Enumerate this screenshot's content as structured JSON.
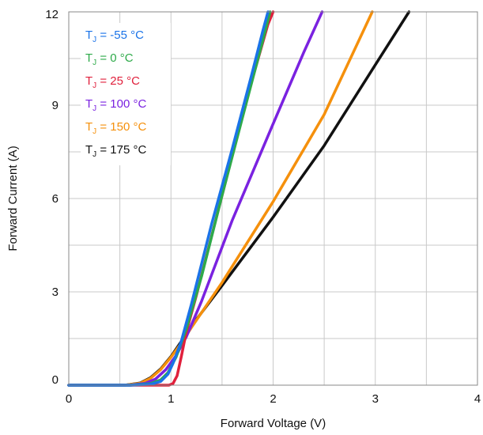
{
  "chart_data": {
    "type": "line",
    "xlabel": "Forward Voltage (V)",
    "ylabel": "Forward Current (A)",
    "xlim": [
      0,
      4
    ],
    "ylim": [
      0,
      12
    ],
    "xticks": [
      0,
      1,
      2,
      3,
      4
    ],
    "yticks": [
      0,
      3,
      6,
      9,
      12
    ],
    "xtick_labels": [
      "0",
      "1",
      "2",
      "3",
      "4"
    ],
    "ytick_labels": [
      "0",
      "3",
      "6",
      "9",
      "12"
    ],
    "grid": true,
    "grid_minor_x": [
      0.5,
      1.5,
      2.5,
      3.5
    ],
    "grid_minor_y": [
      1.5,
      4.5,
      7.5,
      10.5
    ],
    "legend_placement": "top-left",
    "series": [
      {
        "name": "TJ = -55 °C",
        "label_main": "T",
        "label_sub": "J",
        "label_rest": " = -55 °C",
        "color": "#1a73e8",
        "points": [
          [
            0,
            0
          ],
          [
            0.6,
            0
          ],
          [
            0.8,
            0.03
          ],
          [
            0.9,
            0.12
          ],
          [
            0.97,
            0.35
          ],
          [
            1.02,
            0.7
          ],
          [
            1.1,
            1.4
          ],
          [
            1.2,
            2.6
          ],
          [
            1.4,
            5.2
          ],
          [
            1.6,
            7.6
          ],
          [
            1.8,
            10.1
          ],
          [
            1.9,
            11.4
          ],
          [
            1.95,
            12
          ]
        ]
      },
      {
        "name": "TJ = 0 °C",
        "label_main": "T",
        "label_sub": "J",
        "label_rest": " = 0 °C",
        "color": "#2eaa4a",
        "points": [
          [
            0,
            0
          ],
          [
            0.6,
            0
          ],
          [
            0.8,
            0.05
          ],
          [
            0.9,
            0.17
          ],
          [
            0.97,
            0.4
          ],
          [
            1.05,
            0.9
          ],
          [
            1.15,
            1.8
          ],
          [
            1.3,
            3.5
          ],
          [
            1.5,
            6.1
          ],
          [
            1.7,
            8.6
          ],
          [
            1.9,
            11.1
          ],
          [
            1.97,
            12
          ]
        ]
      },
      {
        "name": "TJ = 25 °C",
        "label_main": "T",
        "label_sub": "J",
        "label_rest": " = 25 °C",
        "color": "#e0203c",
        "points": [
          [
            0,
            0
          ],
          [
            0.98,
            0
          ],
          [
            1.02,
            0.05
          ],
          [
            1.06,
            0.3
          ],
          [
            1.1,
            0.9
          ],
          [
            1.15,
            1.7
          ],
          [
            1.25,
            2.9
          ],
          [
            1.5,
            6.1
          ],
          [
            1.75,
            9.3
          ],
          [
            1.95,
            11.6
          ],
          [
            2.0,
            12
          ]
        ]
      },
      {
        "name": "TJ = 100 °C",
        "label_main": "T",
        "label_sub": "J",
        "label_rest": " = 100 °C",
        "color": "#7a22e0",
        "points": [
          [
            0,
            0
          ],
          [
            0.6,
            0
          ],
          [
            0.75,
            0.06
          ],
          [
            0.85,
            0.2
          ],
          [
            0.95,
            0.5
          ],
          [
            1.05,
            0.95
          ],
          [
            1.15,
            1.55
          ],
          [
            1.3,
            2.7
          ],
          [
            1.6,
            5.3
          ],
          [
            2.0,
            8.4
          ],
          [
            2.3,
            10.7
          ],
          [
            2.48,
            12
          ]
        ]
      },
      {
        "name": "TJ = 150 °C",
        "label_main": "T",
        "label_sub": "J",
        "label_rest": " = 150 °C",
        "color": "#f5900c",
        "points": [
          [
            0,
            0
          ],
          [
            0.55,
            0
          ],
          [
            0.7,
            0.06
          ],
          [
            0.8,
            0.22
          ],
          [
            0.9,
            0.5
          ],
          [
            1.0,
            0.9
          ],
          [
            1.1,
            1.35
          ],
          [
            1.2,
            1.85
          ],
          [
            1.5,
            3.3
          ],
          [
            2.0,
            5.9
          ],
          [
            2.5,
            8.7
          ],
          [
            2.97,
            12
          ]
        ]
      },
      {
        "name": "TJ = 175 °C",
        "label_main": "T",
        "label_sub": "J",
        "label_rest": " = 175 °C",
        "color": "#111111",
        "points": [
          [
            0,
            0
          ],
          [
            0.55,
            0
          ],
          [
            0.7,
            0.07
          ],
          [
            0.8,
            0.24
          ],
          [
            0.9,
            0.52
          ],
          [
            1.0,
            0.92
          ],
          [
            1.1,
            1.4
          ],
          [
            1.2,
            1.9
          ],
          [
            1.5,
            3.2
          ],
          [
            2.0,
            5.4
          ],
          [
            2.5,
            7.7
          ],
          [
            3.0,
            10.3
          ],
          [
            3.33,
            12
          ]
        ]
      }
    ]
  }
}
